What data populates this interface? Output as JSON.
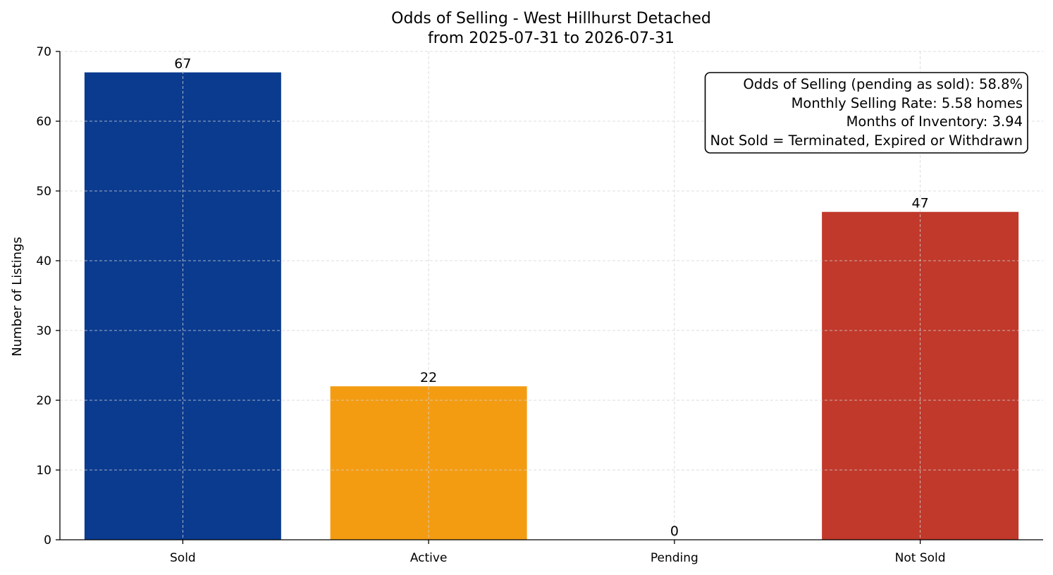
{
  "chart_data": {
    "type": "bar",
    "title": "Odds of Selling - West Hillhurst Detached",
    "subtitle": "from 2025-07-31 to 2026-07-31",
    "xlabel": "",
    "ylabel": "Number of Listings",
    "categories": [
      "Sold",
      "Active",
      "Pending",
      "Not Sold"
    ],
    "values": [
      67,
      22,
      0,
      47
    ],
    "data_labels": [
      "67",
      "22",
      "0",
      "47"
    ],
    "colors": [
      "#0b3b8f",
      "#f39c12",
      "#2e7d32",
      "#c0392b"
    ],
    "ylim": [
      0,
      70
    ],
    "yticks": [
      0,
      10,
      20,
      30,
      40,
      50,
      60,
      70
    ],
    "grid": true,
    "legend": "none",
    "annotation": {
      "placement": "top-right",
      "lines": [
        "Odds of Selling (pending as sold): 58.8%",
        "Monthly Selling Rate: 5.58 homes",
        "Months of Inventory: 3.94",
        "Not Sold = Terminated, Expired or Withdrawn"
      ]
    }
  }
}
